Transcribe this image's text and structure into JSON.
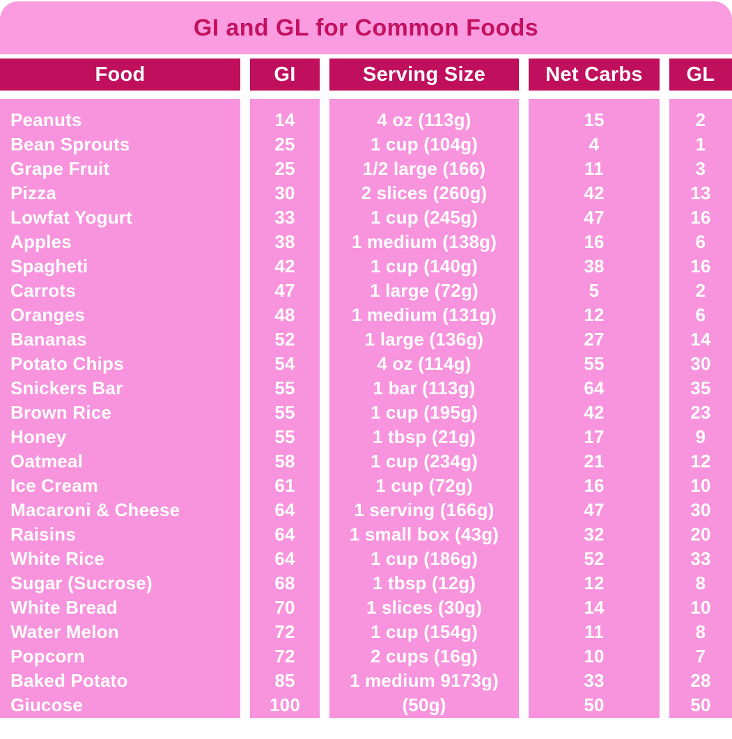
{
  "chart_data": {
    "type": "table",
    "title": "GI and GL for Common Foods",
    "headers": [
      "Food",
      "GI",
      "Serving Size",
      "Net Carbs",
      "GL"
    ],
    "rows": [
      [
        "Peanuts",
        "14",
        "4 oz (113g)",
        "15",
        "2"
      ],
      [
        "Bean Sprouts",
        "25",
        "1 cup (104g)",
        "4",
        "1"
      ],
      [
        "Grape Fruit",
        "25",
        "1/2 large (166)",
        "11",
        "3"
      ],
      [
        "Pizza",
        "30",
        "2 slices (260g)",
        "42",
        "13"
      ],
      [
        "Lowfat Yogurt",
        "33",
        "1 cup (245g)",
        "47",
        "16"
      ],
      [
        "Apples",
        "38",
        "1 medium (138g)",
        "16",
        "6"
      ],
      [
        "Spagheti",
        "42",
        "1 cup (140g)",
        "38",
        "16"
      ],
      [
        "Carrots",
        "47",
        "1 large (72g)",
        "5",
        "2"
      ],
      [
        "Oranges",
        "48",
        "1 medium (131g)",
        "12",
        "6"
      ],
      [
        "Bananas",
        "52",
        "1 large (136g)",
        "27",
        "14"
      ],
      [
        "Potato Chips",
        "54",
        "4 oz (114g)",
        "55",
        "30"
      ],
      [
        "Snickers Bar",
        "55",
        "1 bar (113g)",
        "64",
        "35"
      ],
      [
        "Brown Rice",
        "55",
        "1 cup (195g)",
        "42",
        "23"
      ],
      [
        "Honey",
        "55",
        "1 tbsp (21g)",
        "17",
        "9"
      ],
      [
        "Oatmeal",
        "58",
        "1 cup (234g)",
        "21",
        "12"
      ],
      [
        "Ice Cream",
        "61",
        "1 cup (72g)",
        "16",
        "10"
      ],
      [
        "Macaroni & Cheese",
        "64",
        "1 serving (166g)",
        "47",
        "30"
      ],
      [
        "Raisins",
        "64",
        "1 small box (43g)",
        "32",
        "20"
      ],
      [
        "White Rice",
        "64",
        "1 cup (186g)",
        "52",
        "33"
      ],
      [
        "Sugar (Sucrose)",
        "68",
        "1 tbsp (12g)",
        "12",
        "8"
      ],
      [
        "White Bread",
        "70",
        "1 slices (30g)",
        "14",
        "10"
      ],
      [
        "Water Melon",
        "72",
        "1 cup (154g)",
        "11",
        "8"
      ],
      [
        "Popcorn",
        "72",
        "2 cups (16g)",
        "10",
        "7"
      ],
      [
        "Baked Potato",
        "85",
        "1 medium 9173g)",
        "33",
        "28"
      ],
      [
        "Giucose",
        "100",
        "(50g)",
        "50",
        "50"
      ]
    ],
    "layout": {
      "legend": "none",
      "grid": "off",
      "column_alignment": [
        "left",
        "center",
        "center",
        "center",
        "center"
      ]
    }
  },
  "colors": {
    "page_bg": "#ffffff",
    "title_bar_bg": "#fb9ce0",
    "title_text": "#c4115f",
    "header_cell_bg": "#c00f5d",
    "header_text": "#ffffff",
    "column_bg": "#f893dd",
    "row_text": "#ffffff"
  }
}
